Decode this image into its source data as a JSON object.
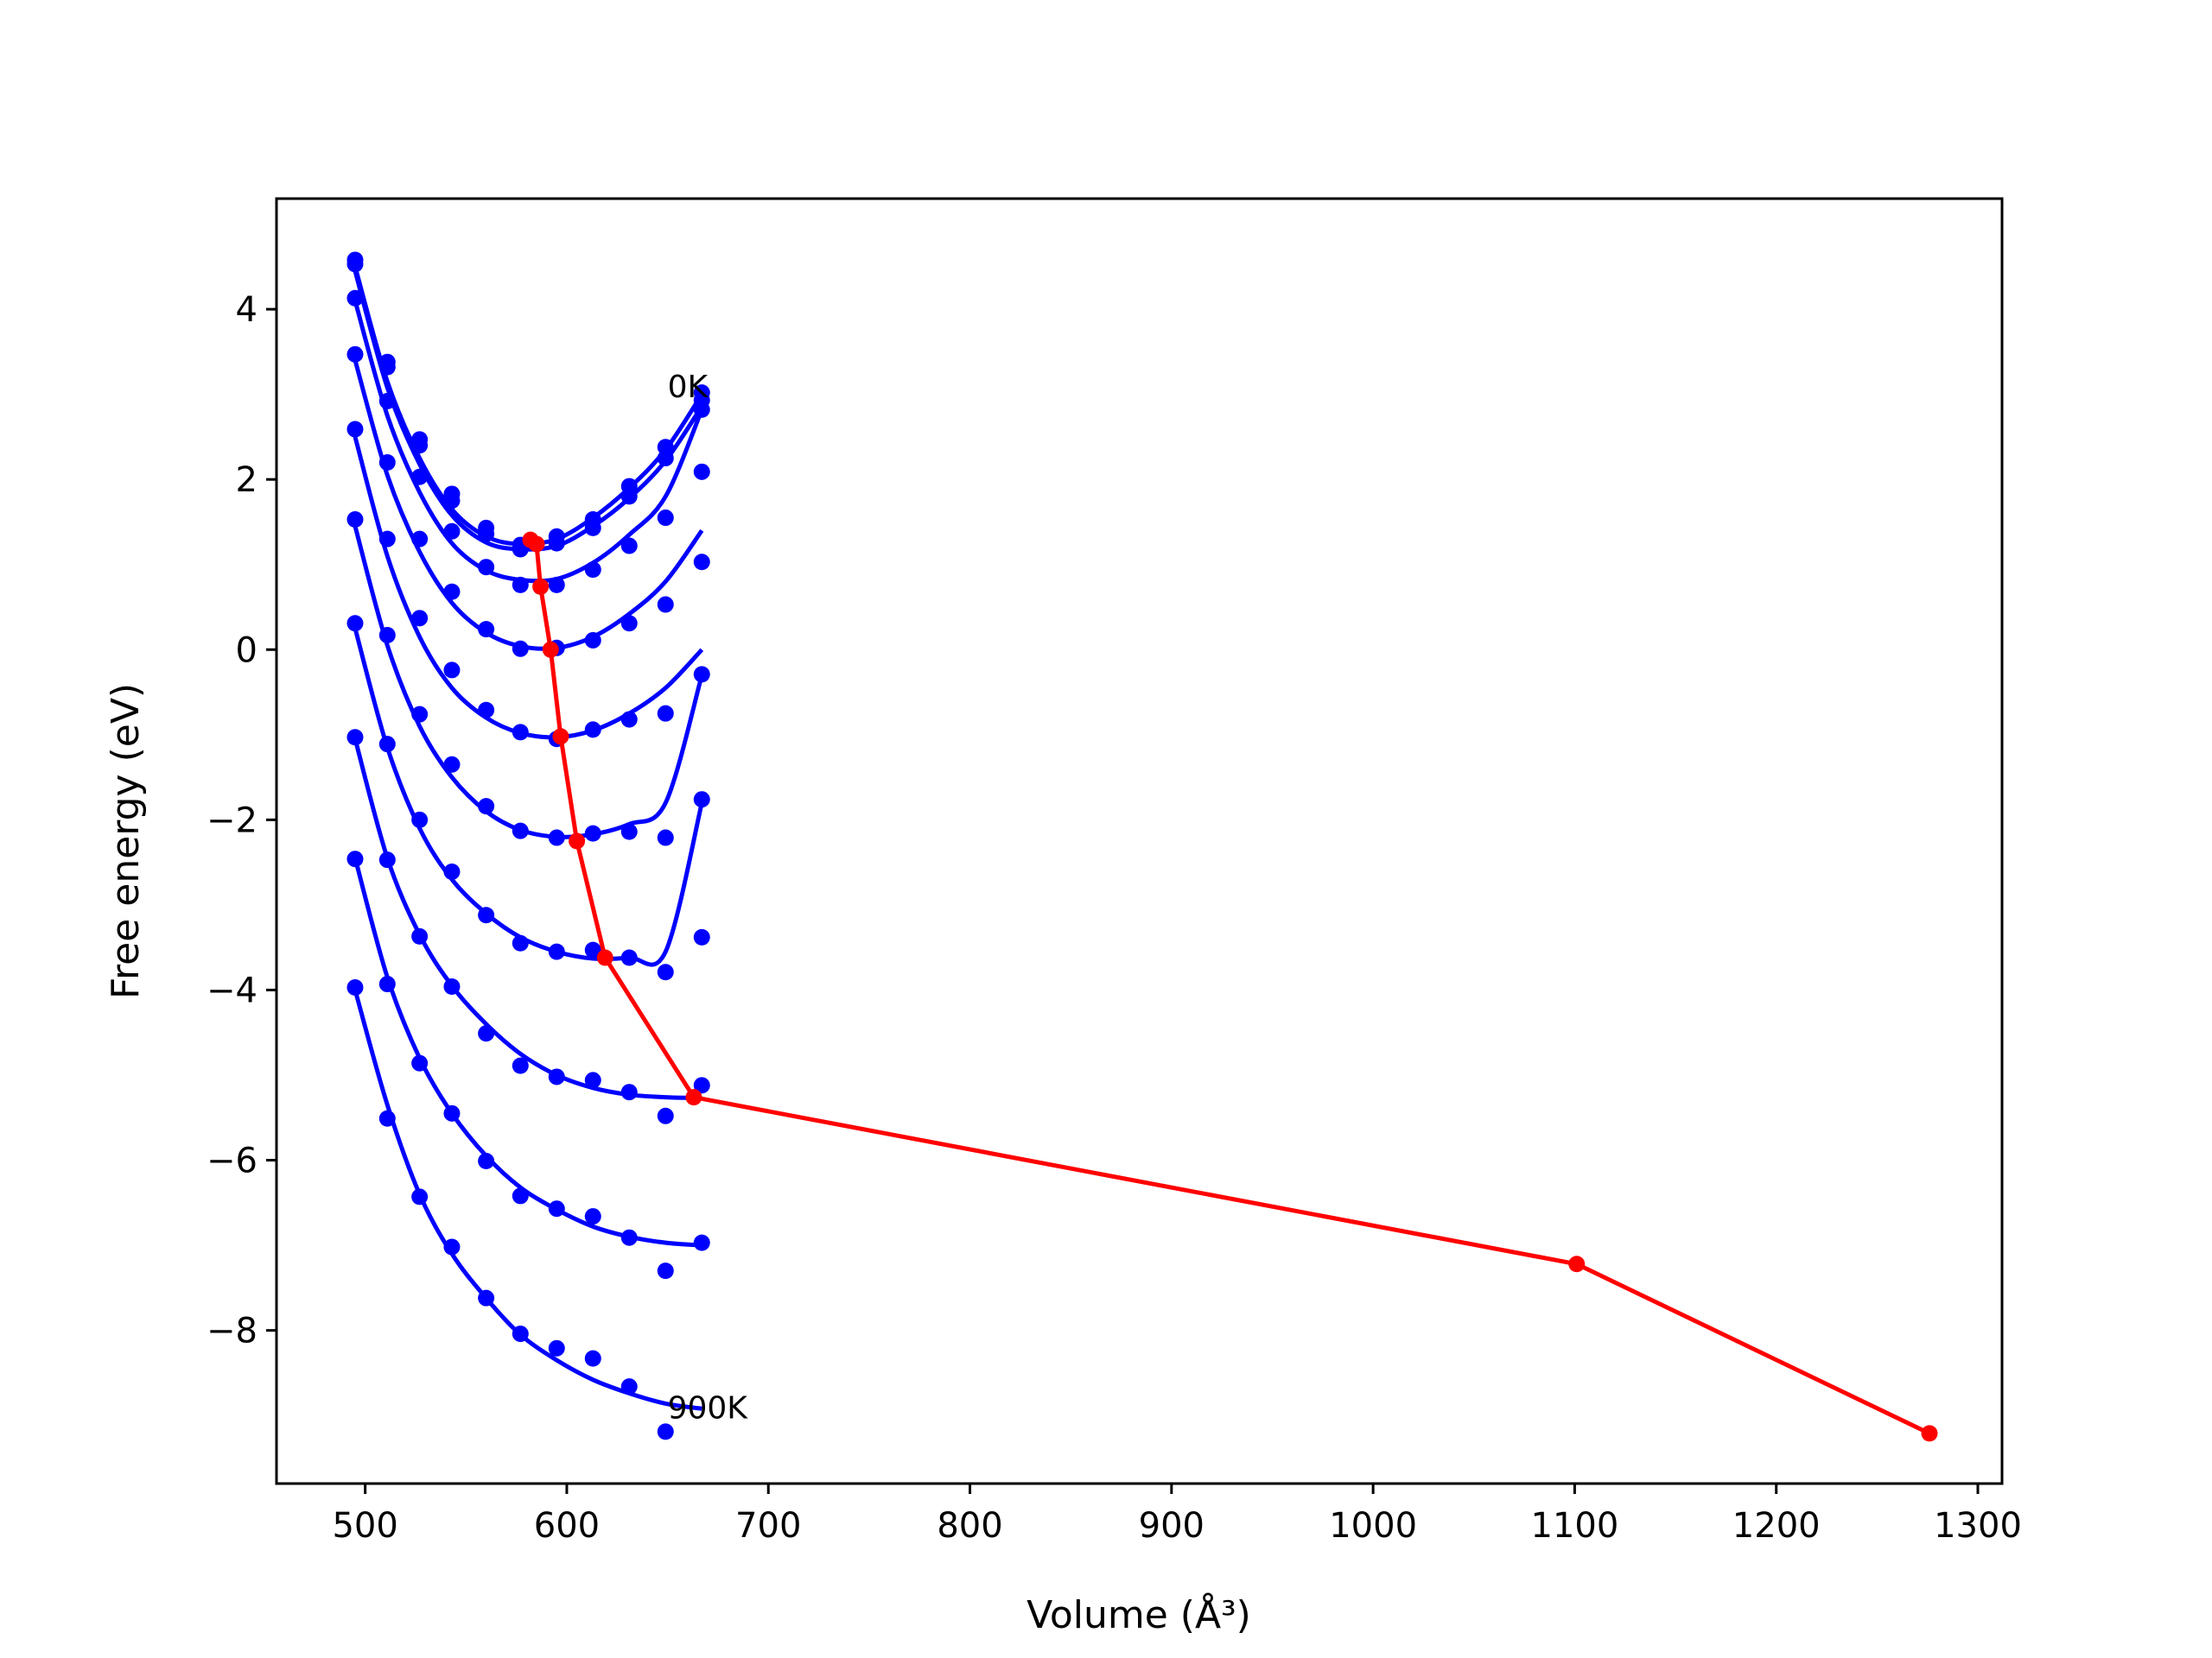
{
  "chart_data": {
    "type": "line",
    "xlabel": "Volume (Å³)",
    "ylabel": "Free energy (eV)",
    "xlim": [
      456,
      1312
    ],
    "ylim": [
      -9.8,
      5.3
    ],
    "xticks": [
      500,
      600,
      700,
      800,
      900,
      1000,
      1100,
      1200,
      1300
    ],
    "yticks": [
      -8,
      -6,
      -4,
      -2,
      0,
      2,
      4
    ],
    "annotations": [
      {
        "text": "0K",
        "x": 650,
        "y": 3.1
      },
      {
        "text": "900K",
        "x": 650,
        "y": -8.9
      }
    ],
    "colors": {
      "isotherms": "#0000ff",
      "minimum_path": "#ff0000",
      "axes": "#000000"
    },
    "x": [
      495,
      511,
      527,
      543,
      560,
      577,
      595,
      613,
      631,
      649,
      667
    ],
    "series": [
      {
        "y": [
          4.58,
          3.38,
          2.47,
          1.83,
          1.43,
          1.23,
          1.33,
          1.53,
          1.92,
          2.38,
          3.02
        ],
        "fit": [
          4.5,
          3.15,
          2.25,
          1.65,
          1.33,
          1.24,
          1.3,
          1.55,
          1.9,
          2.35,
          3.0
        ]
      },
      {
        "y": [
          4.53,
          3.32,
          2.4,
          1.75,
          1.36,
          1.18,
          1.25,
          1.43,
          1.8,
          2.25,
          2.93
        ],
        "fit": [
          4.45,
          3.08,
          2.18,
          1.58,
          1.26,
          1.18,
          1.22,
          1.45,
          1.78,
          2.22,
          2.86
        ]
      },
      {
        "y": [
          4.13,
          2.92,
          2.03,
          1.39,
          0.97,
          0.76,
          0.76,
          0.94,
          1.22,
          1.55,
          2.82
        ],
        "fit": [
          4.1,
          2.75,
          1.85,
          1.25,
          0.93,
          0.82,
          0.83,
          1.02,
          1.35,
          1.8,
          2.82
        ]
      },
      {
        "y": [
          3.47,
          2.2,
          1.3,
          0.68,
          0.24,
          0.01,
          0.02,
          0.11,
          0.31,
          0.53,
          2.09
        ],
        "fit": [
          3.4,
          2.05,
          1.15,
          0.55,
          0.2,
          0.04,
          0.02,
          0.15,
          0.42,
          0.8,
          1.4
        ]
      },
      {
        "y": [
          2.59,
          1.3,
          0.37,
          -0.24,
          -0.71,
          -0.97,
          -1.05,
          -0.94,
          -0.82,
          -0.75,
          1.03
        ],
        "fit": [
          2.5,
          1.1,
          0.15,
          -0.45,
          -0.8,
          -0.98,
          -1.03,
          -0.95,
          -0.75,
          -0.45,
          0.0
        ]
      },
      {
        "y": [
          1.53,
          0.17,
          -0.76,
          -1.35,
          -1.84,
          -2.13,
          -2.21,
          -2.16,
          -2.14,
          -2.21,
          -0.29
        ],
        "fit": [
          1.45,
          0.05,
          -0.9,
          -1.5,
          -1.9,
          -2.12,
          -2.2,
          -2.17,
          -2.05,
          -1.8,
          -0.3
        ]
      },
      {
        "y": [
          0.31,
          -1.11,
          -2.0,
          -2.61,
          -3.12,
          -3.45,
          -3.55,
          -3.53,
          -3.62,
          -3.79,
          -1.76
        ],
        "fit": [
          0.25,
          -1.15,
          -2.1,
          -2.7,
          -3.1,
          -3.38,
          -3.55,
          -3.63,
          -3.62,
          -3.55,
          -1.8
        ]
      },
      {
        "y": [
          -1.03,
          -2.47,
          -3.37,
          -3.96,
          -4.51,
          -4.89,
          -5.02,
          -5.06,
          -5.2,
          -5.48,
          -3.38
        ],
        "fit": [
          -1.05,
          -2.45,
          -3.35,
          -3.95,
          -4.4,
          -4.75,
          -5.0,
          -5.15,
          -5.23,
          -5.26,
          -5.27
        ]
      },
      {
        "y": [
          -2.46,
          -3.93,
          -4.86,
          -5.45,
          -6.01,
          -6.42,
          -6.57,
          -6.66,
          -6.91,
          -7.3,
          -5.12
        ],
        "fit": [
          -2.45,
          -3.85,
          -4.8,
          -5.45,
          -5.95,
          -6.32,
          -6.58,
          -6.78,
          -6.9,
          -6.97,
          -7.0
        ]
      },
      {
        "y": [
          -3.97,
          -5.51,
          -6.43,
          -7.02,
          -7.62,
          -8.04,
          -8.21,
          -8.33,
          -8.66,
          -9.19,
          -6.97
        ],
        "fit": [
          -4.0,
          -5.35,
          -6.4,
          -7.1,
          -7.62,
          -8.05,
          -8.35,
          -8.58,
          -8.74,
          -8.86,
          -8.92
        ]
      }
    ],
    "minimum_path": {
      "x": [
        582,
        585,
        587,
        592,
        597,
        605,
        619,
        663,
        1101,
        1276
      ],
      "y": [
        1.29,
        1.24,
        0.74,
        0.0,
        -1.02,
        -2.25,
        -3.62,
        -5.26,
        -7.22,
        -9.21
      ]
    }
  }
}
